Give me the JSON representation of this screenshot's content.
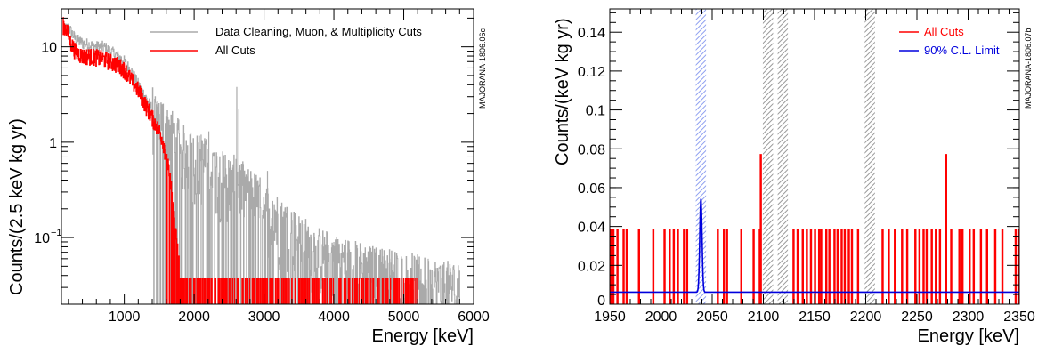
{
  "chart_data": [
    {
      "type": "line",
      "xlabel": "Energy [keV]",
      "ylabel": "Counts/(2.5 keV kg yr)",
      "xlim": [
        100,
        6000
      ],
      "ylim": [
        0.02,
        25
      ],
      "log_y": true,
      "x_ticks": [
        "1000",
        "2000",
        "3000",
        "4000",
        "5000",
        "6000"
      ],
      "y_ticks": [
        {
          "value": 0.1,
          "label": "10",
          "sup": "−1"
        },
        {
          "value": 1,
          "label": "1",
          "sup": ""
        },
        {
          "value": 10,
          "label": "10",
          "sup": ""
        }
      ],
      "watermark": "MAJORANA-1806.06c",
      "legend_position": "top-right",
      "series": [
        {
          "name": "Data Cleaning, Muon, & Multiplicity Cuts",
          "color": "#aaaaaa",
          "envelope": [
            [
              120,
              15
            ],
            [
              200,
              16
            ],
            [
              300,
              12
            ],
            [
              400,
              11
            ],
            [
              500,
              10.5
            ],
            [
              600,
              10
            ],
            [
              700,
              10
            ],
            [
              800,
              9
            ],
            [
              900,
              8
            ],
            [
              1000,
              7
            ],
            [
              1100,
              5.5
            ],
            [
              1200,
              4
            ],
            [
              1300,
              3
            ],
            [
              1400,
              2.2
            ],
            [
              1500,
              1.8
            ],
            [
              1600,
              1.5
            ],
            [
              1700,
              1.2
            ],
            [
              1800,
              0.9
            ],
            [
              1900,
              0.8
            ],
            [
              2000,
              0.7
            ],
            [
              2200,
              0.6
            ],
            [
              2400,
              0.45
            ],
            [
              2600,
              0.4
            ],
            [
              2800,
              0.3
            ],
            [
              3000,
              0.22
            ],
            [
              3200,
              0.15
            ],
            [
              3500,
              0.1
            ],
            [
              3800,
              0.07
            ],
            [
              4200,
              0.055
            ],
            [
              4600,
              0.045
            ],
            [
              5000,
              0.04
            ],
            [
              5300,
              0.035
            ],
            [
              5800,
              0.03
            ]
          ],
          "spikes": [
            [
              1460,
              2.5
            ],
            [
              1760,
              1.6
            ],
            [
              2100,
              1.2
            ],
            [
              2210,
              1.3
            ],
            [
              2610,
              3.8
            ],
            [
              2640,
              2.2
            ],
            [
              3050,
              0.5
            ],
            [
              3300,
              0.2
            ],
            [
              3600,
              0.12
            ],
            [
              3650,
              0.1
            ],
            [
              4000,
              0.09
            ],
            [
              4800,
              0.06
            ],
            [
              5350,
              0.06
            ],
            [
              5800,
              0.045
            ]
          ]
        },
        {
          "name": "All Cuts",
          "color": "#ff0000",
          "envelope": [
            [
              120,
              17
            ],
            [
              180,
              15
            ],
            [
              230,
              11
            ],
            [
              300,
              9
            ],
            [
              400,
              8
            ],
            [
              500,
              8
            ],
            [
              600,
              7.8
            ],
            [
              700,
              7.5
            ],
            [
              800,
              7
            ],
            [
              900,
              6.5
            ],
            [
              1000,
              5.8
            ],
            [
              1100,
              4.5
            ],
            [
              1200,
              3.5
            ],
            [
              1300,
              2.5
            ],
            [
              1400,
              1.8
            ],
            [
              1500,
              1.3
            ],
            [
              1550,
              1.05
            ],
            [
              1600,
              0.7
            ],
            [
              1650,
              0.45
            ],
            [
              1700,
              0.2
            ],
            [
              1750,
              0.09
            ],
            [
              1800,
              0.04
            ],
            [
              2000,
              0.04
            ],
            [
              3000,
              0.038
            ],
            [
              4000,
              0.038
            ],
            [
              5000,
              0.038
            ],
            [
              5250,
              0.038
            ]
          ],
          "sparse_bins": [
            1760,
            1780,
            1800,
            1850,
            1900,
            1950,
            2000,
            2050,
            2100,
            2150,
            2200,
            2250,
            2300,
            2350,
            2400,
            2450,
            2500,
            2550,
            2620,
            2700,
            2750,
            2850,
            2900,
            3000,
            3100,
            3200,
            3300,
            3400,
            3500,
            3600,
            3700,
            3900,
            4100,
            4300,
            4500,
            4700,
            4900,
            5050,
            5200
          ],
          "sparse_level": 0.038
        }
      ]
    },
    {
      "type": "line",
      "xlabel": "Energy [keV]",
      "ylabel": "Counts/(keV kg yr)",
      "xlim": [
        1950,
        2350
      ],
      "ylim": [
        0,
        0.152
      ],
      "x_ticks": [
        "1950",
        "2000",
        "2050",
        "2100",
        "2150",
        "2200",
        "2250",
        "2300",
        "2350"
      ],
      "y_ticks": [
        "0",
        "0.02",
        "0.04",
        "0.06",
        "0.08",
        "0.1",
        "0.12",
        "0.14"
      ],
      "watermark": "MAJORANA-1806.07b",
      "legend_position": "top-right",
      "excluded_bands": [
        [
          2099.5,
          2109.5
        ],
        [
          2114,
          2124
        ],
        [
          2199,
          2209
        ]
      ],
      "roi_band": [
        2034,
        2044
      ],
      "series": [
        {
          "name": "All Cuts",
          "color": "#ff0000",
          "bin_level": 0.0385,
          "bins": [
            1951,
            1953,
            1957,
            1963,
            1966,
            1978,
            1992,
            2003,
            2008,
            2012,
            2016,
            2022,
            2025,
            2055,
            2061,
            2064,
            2078,
            2090,
            2096,
            2129,
            2133,
            2138,
            2142,
            2146,
            2150,
            2154,
            2156,
            2161,
            2164,
            2169,
            2172,
            2176,
            2179,
            2183,
            2186,
            2192,
            2216,
            2222,
            2228,
            2235,
            2240,
            2248,
            2252,
            2256,
            2259,
            2264,
            2268,
            2272,
            2283,
            2291,
            2294,
            2301,
            2305,
            2312,
            2318,
            2326,
            2333,
            2346,
            2349
          ],
          "tall_bins": [
            [
              2097,
              0.077
            ],
            [
              2278,
              0.077
            ]
          ]
        },
        {
          "name": "90% C.L. Limit",
          "color": "#0000dd",
          "baseline": 0.0062,
          "peak_center": 2039,
          "peak_height": 0.048,
          "peak_sigma": 1.1
        }
      ]
    }
  ]
}
